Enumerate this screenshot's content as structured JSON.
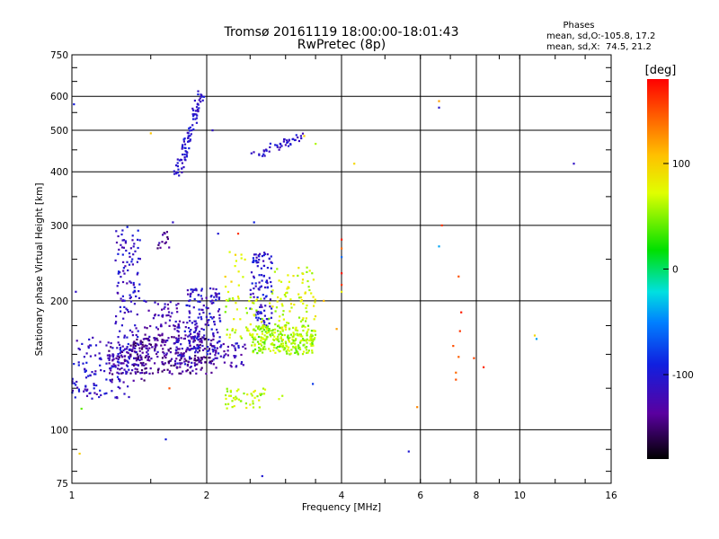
{
  "chart_data": {
    "type": "scatter",
    "title": "Tromsø 20161119 18:00:00-18:01:43",
    "subtitle": "RwPretec (8p)",
    "xlabel": "Frequency [MHz]",
    "ylabel": "Stationary phase Virtual Height [km]",
    "xscale": "log2",
    "yscale": "log",
    "xlim": [
      1,
      16
    ],
    "ylim": [
      75,
      750
    ],
    "xticks": [
      1,
      2,
      4,
      6,
      8,
      10,
      16
    ],
    "xtick_labels": [
      "1",
      "2",
      "4",
      "6",
      "8",
      "10",
      "16"
    ],
    "yticks": [
      75,
      100,
      200,
      300,
      400,
      500,
      600,
      750
    ],
    "ytick_labels": [
      "75",
      "100",
      "200",
      "300",
      "400",
      "500",
      "600",
      "750"
    ],
    "grid": true,
    "stats": {
      "heading": "Phases",
      "line_o": "mean, sd,O:-105.8, 17.2",
      "line_x": "mean, sd,X:  74.5, 21.2"
    },
    "colorbar": {
      "label": "[deg]",
      "range": [
        -180,
        180
      ],
      "ticks": [
        100,
        0,
        -100
      ],
      "tick_labels": [
        "100",
        "0",
        "-100"
      ],
      "colormap": "rainbow"
    },
    "clusters": [
      {
        "x": [
          1.0,
          1.35
        ],
        "y": [
          118,
          165
        ],
        "phase": -110,
        "n": 140
      },
      {
        "x": [
          1.25,
          1.42
        ],
        "y": [
          140,
          300
        ],
        "phase": -110,
        "n": 130
      },
      {
        "x": [
          1.2,
          1.5
        ],
        "y": [
          130,
          160
        ],
        "phase": -135,
        "n": 60
      },
      {
        "x": [
          1.35,
          2.1
        ],
        "y": [
          135,
          165
        ],
        "phase": -140,
        "n": 220
      },
      {
        "x": [
          1.45,
          1.75
        ],
        "y": [
          150,
          200
        ],
        "phase": -125,
        "n": 80
      },
      {
        "x": [
          1.55,
          1.65
        ],
        "y": [
          260,
          290
        ],
        "phase": -135,
        "n": 14
      },
      {
        "x": [
          1.7,
          1.95
        ],
        "y": [
          140,
          180
        ],
        "phase": -115,
        "n": 80
      },
      {
        "x": [
          1.8,
          2.15
        ],
        "y": [
          150,
          215
        ],
        "phase": -110,
        "n": 130
      },
      {
        "x": [
          2.05,
          2.45
        ],
        "y": [
          140,
          160
        ],
        "phase": -120,
        "n": 40
      },
      {
        "x": [
          2.5,
          2.8
        ],
        "y": [
          175,
          260
        ],
        "phase": -105,
        "n": 100
      },
      {
        "x": [
          2.2,
          2.8
        ],
        "y": [
          160,
          205
        ],
        "phase": 65,
        "n": 60
      },
      {
        "x": [
          2.5,
          3.5
        ],
        "y": [
          150,
          175
        ],
        "phase": 55,
        "n": 220
      },
      {
        "x": [
          2.8,
          3.5
        ],
        "y": [
          160,
          240
        ],
        "phase": 70,
        "n": 110
      },
      {
        "x": [
          2.2,
          2.7
        ],
        "y": [
          112,
          125
        ],
        "phase": 65,
        "n": 45
      },
      {
        "x": [
          2.2,
          2.5
        ],
        "y": [
          200,
          260
        ],
        "phase": 85,
        "n": 15
      }
    ],
    "curves": [
      {
        "x": [
          1.72,
          1.95
        ],
        "y": [
          390,
          620
        ],
        "phase": -105,
        "n": 90
      },
      {
        "x": [
          2.55,
          3.3
        ],
        "y": [
          437,
          488
        ],
        "phase": -110,
        "n": 45
      }
    ],
    "points": [
      {
        "x": 1.02,
        "y": 210,
        "phase": -110
      },
      {
        "x": 1.04,
        "y": 88,
        "phase": 100
      },
      {
        "x": 1.01,
        "y": 575,
        "phase": -95
      },
      {
        "x": 1.05,
        "y": 112,
        "phase": 40
      },
      {
        "x": 1.3,
        "y": 205,
        "phase": -100
      },
      {
        "x": 1.38,
        "y": 215,
        "phase": -95
      },
      {
        "x": 1.45,
        "y": 200,
        "phase": -100
      },
      {
        "x": 1.5,
        "y": 492,
        "phase": 105
      },
      {
        "x": 1.62,
        "y": 95,
        "phase": -95
      },
      {
        "x": 1.68,
        "y": 305,
        "phase": -110
      },
      {
        "x": 1.65,
        "y": 125,
        "phase": 150
      },
      {
        "x": 2.12,
        "y": 287,
        "phase": -100
      },
      {
        "x": 2.25,
        "y": 260,
        "phase": 70
      },
      {
        "x": 2.35,
        "y": 287,
        "phase": 160
      },
      {
        "x": 2.55,
        "y": 305,
        "phase": -90
      },
      {
        "x": 2.66,
        "y": 78,
        "phase": -100
      },
      {
        "x": 2.9,
        "y": 118,
        "phase": 70
      },
      {
        "x": 3.5,
        "y": 465,
        "phase": 60
      },
      {
        "x": 3.3,
        "y": 485,
        "phase": 100
      },
      {
        "x": 3.45,
        "y": 128,
        "phase": -80
      },
      {
        "x": 3.65,
        "y": 200,
        "phase": 110
      },
      {
        "x": 3.9,
        "y": 172,
        "phase": 120
      },
      {
        "x": 4.0,
        "y": 278,
        "phase": 170
      },
      {
        "x": 4.0,
        "y": 265,
        "phase": 140
      },
      {
        "x": 4.0,
        "y": 253,
        "phase": -60
      },
      {
        "x": 4.0,
        "y": 232,
        "phase": 175
      },
      {
        "x": 4.0,
        "y": 218,
        "phase": 160
      },
      {
        "x": 4.0,
        "y": 210,
        "phase": 80
      },
      {
        "x": 4.27,
        "y": 418,
        "phase": 95
      },
      {
        "x": 5.65,
        "y": 89,
        "phase": -100
      },
      {
        "x": 5.9,
        "y": 113,
        "phase": 130
      },
      {
        "x": 6.6,
        "y": 585,
        "phase": 120
      },
      {
        "x": 6.6,
        "y": 565,
        "phase": -105
      },
      {
        "x": 6.7,
        "y": 300,
        "phase": 160
      },
      {
        "x": 6.6,
        "y": 268,
        "phase": -40
      },
      {
        "x": 7.3,
        "y": 228,
        "phase": 150
      },
      {
        "x": 7.4,
        "y": 188,
        "phase": 170
      },
      {
        "x": 7.35,
        "y": 170,
        "phase": 160
      },
      {
        "x": 7.1,
        "y": 157,
        "phase": 150
      },
      {
        "x": 7.3,
        "y": 148,
        "phase": 145
      },
      {
        "x": 7.2,
        "y": 136,
        "phase": 140
      },
      {
        "x": 7.2,
        "y": 131,
        "phase": 150
      },
      {
        "x": 7.9,
        "y": 147,
        "phase": 155
      },
      {
        "x": 8.3,
        "y": 140,
        "phase": 165
      },
      {
        "x": 10.8,
        "y": 166,
        "phase": 95
      },
      {
        "x": 10.9,
        "y": 163,
        "phase": -40
      },
      {
        "x": 13.2,
        "y": 418,
        "phase": -110
      },
      {
        "x": 2.95,
        "y": 120,
        "phase": 60
      },
      {
        "x": 1.85,
        "y": 500,
        "phase": -110
      },
      {
        "x": 2.06,
        "y": 500,
        "phase": -110
      }
    ]
  }
}
